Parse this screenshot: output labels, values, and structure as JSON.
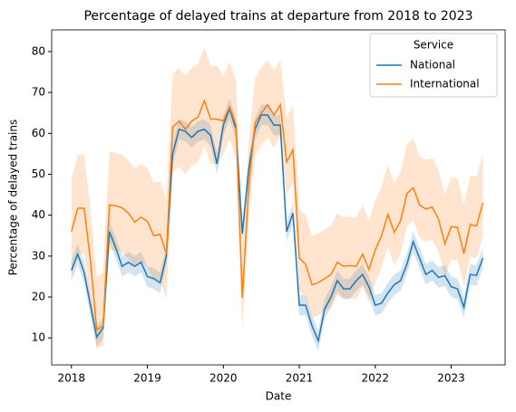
{
  "chart_data": {
    "type": "line",
    "title": "Percentage of delayed trains at departure from 2018 to 2023",
    "x_label": "Date",
    "y_label": "Percentage of delayed trains",
    "legend_title": "Service",
    "legend": "upper right",
    "xlim": [
      2017.74,
      2023.71
    ],
    "xticks": [
      2018,
      2019,
      2020,
      2021,
      2022,
      2023
    ],
    "ylim": [
      3.4,
      85.3
    ],
    "yticks": [
      10,
      20,
      30,
      40,
      50,
      60,
      70,
      80
    ],
    "x": [
      2018,
      2018.083,
      2018.167,
      2018.25,
      2018.333,
      2018.417,
      2018.5,
      2018.583,
      2018.667,
      2018.75,
      2018.833,
      2018.917,
      2019,
      2019.083,
      2019.167,
      2019.25,
      2019.333,
      2019.417,
      2019.5,
      2019.583,
      2019.667,
      2019.75,
      2019.833,
      2019.917,
      2020,
      2020.083,
      2020.167,
      2020.25,
      2020.333,
      2020.417,
      2020.5,
      2020.583,
      2020.667,
      2020.75,
      2020.833,
      2020.917,
      2021,
      2021.083,
      2021.167,
      2021.25,
      2021.333,
      2021.417,
      2021.5,
      2021.583,
      2021.667,
      2021.75,
      2021.833,
      2021.917,
      2022,
      2022.083,
      2022.167,
      2022.25,
      2022.333,
      2022.417,
      2022.5,
      2022.583,
      2022.667,
      2022.75,
      2022.833,
      2022.917,
      2023,
      2023.083,
      2023.167,
      2023.25,
      2023.333,
      2023.417
    ],
    "series": [
      {
        "name": "National",
        "color": "#1f77b4",
        "values": [
          26.5,
          30.5,
          26,
          18,
          10.2,
          12.5,
          36,
          32,
          27.5,
          28.5,
          27.5,
          28.5,
          25,
          24.5,
          23.5,
          30,
          55,
          61,
          60.5,
          59,
          60.5,
          61,
          59.5,
          52.5,
          62,
          66,
          61,
          35.5,
          51,
          61,
          64.5,
          64.5,
          62,
          62,
          36,
          40.5,
          18,
          18,
          13,
          9.3,
          17,
          20,
          24,
          22,
          22,
          24,
          25.5,
          22.5,
          18,
          18.5,
          21,
          23,
          24,
          28,
          33.5,
          29.5,
          25.5,
          26.5,
          24.8,
          25.2,
          22.5,
          22,
          17.5,
          25.5,
          25.3,
          29.5
        ],
        "lower": [
          24,
          28,
          23.5,
          15.5,
          7.7,
          10,
          33.5,
          29.5,
          25,
          26,
          25,
          26,
          22.5,
          22,
          21,
          27.5,
          52.5,
          58.5,
          58,
          56.5,
          58,
          58.5,
          57,
          50,
          59.5,
          63.5,
          58.5,
          33,
          48.5,
          58.5,
          62,
          62,
          59.5,
          59.5,
          33.5,
          38,
          15.5,
          15.5,
          10.5,
          6.8,
          14.5,
          17.5,
          21.5,
          19.5,
          19.5,
          21.5,
          23,
          20,
          15.5,
          16,
          18.5,
          20.5,
          21.5,
          25.5,
          31,
          27,
          23,
          24,
          22.3,
          22.7,
          20,
          19.5,
          15,
          23,
          22.8,
          27
        ],
        "upper": [
          29,
          33,
          28.5,
          20.5,
          12.7,
          15,
          38.5,
          34.5,
          30,
          31,
          30,
          31,
          27.5,
          27,
          26,
          32.5,
          57.5,
          63.5,
          63,
          61.5,
          63,
          63.5,
          62,
          55,
          64.5,
          68.5,
          63.5,
          38,
          53.5,
          63.5,
          67,
          67,
          64.5,
          64.5,
          38.5,
          43,
          20.5,
          20.5,
          15.5,
          11.8,
          19.5,
          22.5,
          26.5,
          24.5,
          24.5,
          26.5,
          28,
          25,
          20.5,
          21,
          23.5,
          25.5,
          26.5,
          30.5,
          36,
          32,
          28,
          29,
          27.3,
          27.7,
          25,
          24.5,
          20,
          28,
          27.8,
          32
        ]
      },
      {
        "name": "International",
        "color": "#ff7f0e",
        "values": [
          36,
          41.7,
          41.7,
          29,
          12,
          13,
          42.5,
          42.3,
          41.8,
          40.5,
          38.3,
          39.5,
          38.5,
          35,
          35.3,
          30.5,
          61.5,
          63,
          61,
          63,
          64,
          68,
          63.5,
          63.5,
          63,
          66.5,
          62,
          19.8,
          46.5,
          62.5,
          65,
          67,
          64.5,
          67,
          53,
          56,
          29.5,
          28,
          23,
          23.5,
          24.5,
          25.5,
          28.5,
          27.5,
          27.7,
          27.5,
          30.5,
          26.7,
          31.5,
          35,
          40.2,
          35.8,
          38.6,
          45.3,
          46.7,
          42.5,
          41.5,
          42,
          39,
          33,
          37.2,
          37,
          30.6,
          37.7,
          37.4,
          43
        ],
        "lower": [
          25,
          30.7,
          30.7,
          18,
          7.5,
          8,
          31.5,
          31.3,
          30.8,
          29.5,
          27.3,
          28.5,
          27.5,
          24,
          24.3,
          19.5,
          50.5,
          52,
          50,
          52,
          53,
          57,
          52.5,
          52.5,
          55,
          58.5,
          54,
          11.8,
          38.5,
          54.5,
          57,
          59,
          56.5,
          59,
          45,
          48,
          21.5,
          20,
          15,
          15.5,
          16.5,
          17.5,
          20.5,
          19.5,
          19.7,
          19.5,
          22.5,
          18.7,
          23.5,
          27,
          32.2,
          27.8,
          30.6,
          37.3,
          38.7,
          34.5,
          33.5,
          34,
          31,
          25,
          29.2,
          29,
          22.6,
          29.7,
          29.4,
          35
        ],
        "upper": [
          49,
          54.7,
          54.7,
          42,
          25,
          26,
          55.5,
          55.3,
          54.8,
          53.5,
          51.3,
          52.5,
          51.5,
          48,
          48.3,
          43.5,
          74.5,
          76,
          74,
          76,
          77,
          81,
          76.5,
          76.5,
          74,
          77.5,
          73,
          30.8,
          57.5,
          73.5,
          76,
          78,
          75.5,
          78,
          64,
          67,
          41.5,
          40,
          35,
          35.5,
          36.5,
          37.5,
          40.5,
          39.5,
          39.7,
          39.5,
          42.5,
          38.7,
          43.5,
          47,
          52.2,
          47.8,
          50.6,
          57.3,
          58.7,
          54.5,
          53.5,
          54,
          51,
          45,
          49.2,
          49,
          42.6,
          49.7,
          49.4,
          55
        ]
      }
    ]
  }
}
